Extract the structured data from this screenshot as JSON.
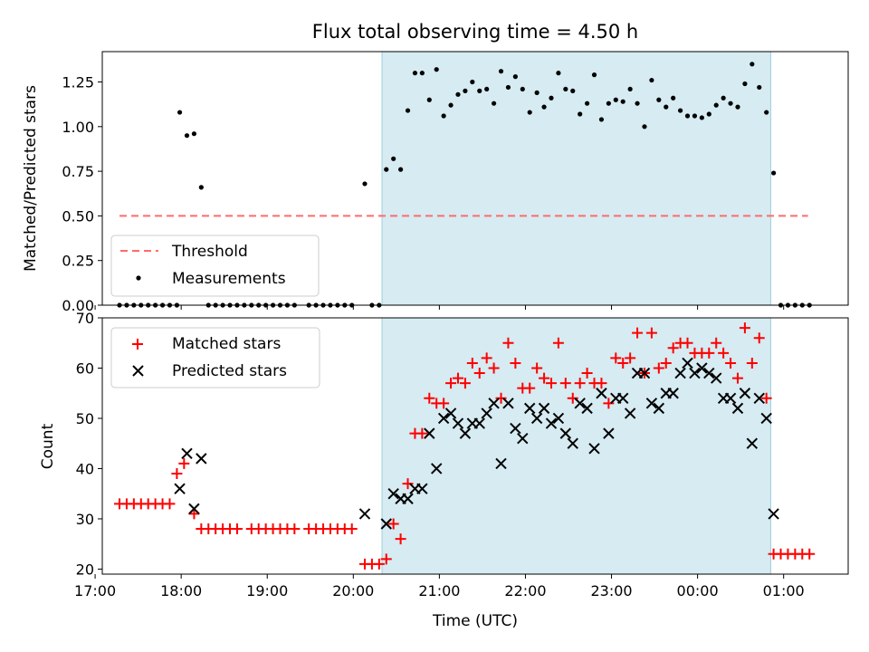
{
  "chart_data": [
    {
      "type": "scatter",
      "title": "Flux total observing time = 4.50 h",
      "ylabel": "Matched/Predicted stars",
      "xlabel": "",
      "xlim": [
        "17:05",
        "01:45"
      ],
      "ylim": [
        0,
        1.42
      ],
      "yticks": [
        "0.00",
        "0.25",
        "0.50",
        "0.75",
        "1.00",
        "1.25"
      ],
      "shaded_interval": [
        "20:20",
        "00:51"
      ],
      "shade_color": "#add8e6",
      "legend_position": "lower-left",
      "threshold": {
        "name": "Threshold",
        "value": 0.5,
        "x_start": "17:17",
        "x_end": "01:17",
        "color": "#ff6b6b",
        "style": "dashed"
      },
      "series": [
        {
          "name": "Measurements",
          "color": "#000000",
          "marker": "dot",
          "points": [
            [
              "17:17",
              0
            ],
            [
              "17:22",
              0
            ],
            [
              "17:27",
              0
            ],
            [
              "17:32",
              0
            ],
            [
              "17:37",
              0
            ],
            [
              "17:42",
              0
            ],
            [
              "17:47",
              0
            ],
            [
              "17:52",
              0
            ],
            [
              "17:57",
              0
            ],
            [
              "17:59",
              1.08
            ],
            [
              "18:04",
              0.95
            ],
            [
              "18:09",
              0.96
            ],
            [
              "18:14",
              0.66
            ],
            [
              "18:19",
              0
            ],
            [
              "18:24",
              0
            ],
            [
              "18:29",
              0
            ],
            [
              "18:34",
              0
            ],
            [
              "18:39",
              0
            ],
            [
              "18:44",
              0
            ],
            [
              "18:49",
              0
            ],
            [
              "18:54",
              0
            ],
            [
              "18:59",
              0
            ],
            [
              "19:04",
              0
            ],
            [
              "19:09",
              0
            ],
            [
              "19:14",
              0
            ],
            [
              "19:19",
              0
            ],
            [
              "19:29",
              0
            ],
            [
              "19:34",
              0
            ],
            [
              "19:39",
              0
            ],
            [
              "19:44",
              0
            ],
            [
              "19:49",
              0
            ],
            [
              "19:54",
              0
            ],
            [
              "19:59",
              0
            ],
            [
              "20:08",
              0.68
            ],
            [
              "20:13",
              0
            ],
            [
              "20:18",
              0
            ],
            [
              "20:23",
              0.76
            ],
            [
              "20:28",
              0.82
            ],
            [
              "20:33",
              0.76
            ],
            [
              "20:38",
              1.09
            ],
            [
              "20:43",
              1.3
            ],
            [
              "20:48",
              1.3
            ],
            [
              "20:53",
              1.15
            ],
            [
              "20:58",
              1.32
            ],
            [
              "21:03",
              1.06
            ],
            [
              "21:08",
              1.12
            ],
            [
              "21:13",
              1.18
            ],
            [
              "21:18",
              1.2
            ],
            [
              "21:23",
              1.25
            ],
            [
              "21:28",
              1.2
            ],
            [
              "21:33",
              1.21
            ],
            [
              "21:38",
              1.13
            ],
            [
              "21:43",
              1.31
            ],
            [
              "21:48",
              1.22
            ],
            [
              "21:53",
              1.28
            ],
            [
              "21:58",
              1.21
            ],
            [
              "22:03",
              1.08
            ],
            [
              "22:08",
              1.19
            ],
            [
              "22:13",
              1.11
            ],
            [
              "22:18",
              1.16
            ],
            [
              "22:23",
              1.3
            ],
            [
              "22:28",
              1.21
            ],
            [
              "22:33",
              1.2
            ],
            [
              "22:38",
              1.07
            ],
            [
              "22:43",
              1.13
            ],
            [
              "22:48",
              1.29
            ],
            [
              "22:53",
              1.04
            ],
            [
              "22:58",
              1.13
            ],
            [
              "23:03",
              1.15
            ],
            [
              "23:08",
              1.14
            ],
            [
              "23:13",
              1.21
            ],
            [
              "23:18",
              1.13
            ],
            [
              "23:23",
              1.0
            ],
            [
              "23:28",
              1.26
            ],
            [
              "23:33",
              1.15
            ],
            [
              "23:38",
              1.11
            ],
            [
              "23:43",
              1.16
            ],
            [
              "23:48",
              1.09
            ],
            [
              "23:53",
              1.06
            ],
            [
              "23:58",
              1.06
            ],
            [
              "00:03",
              1.05
            ],
            [
              "00:08",
              1.07
            ],
            [
              "00:13",
              1.12
            ],
            [
              "00:18",
              1.16
            ],
            [
              "00:23",
              1.13
            ],
            [
              "00:28",
              1.11
            ],
            [
              "00:33",
              1.24
            ],
            [
              "00:38",
              1.35
            ],
            [
              "00:43",
              1.22
            ],
            [
              "00:48",
              1.08
            ],
            [
              "00:53",
              0.74
            ],
            [
              "00:58",
              0
            ],
            [
              "01:03",
              0
            ],
            [
              "01:08",
              0
            ],
            [
              "01:13",
              0
            ],
            [
              "01:18",
              0
            ]
          ]
        }
      ]
    },
    {
      "type": "scatter",
      "title": "",
      "xlabel": "Time (UTC)",
      "ylabel": "Count",
      "xlim": [
        "17:05",
        "01:45"
      ],
      "ylim": [
        19,
        70
      ],
      "xticks": [
        "17:00",
        "18:00",
        "19:00",
        "20:00",
        "21:00",
        "22:00",
        "23:00",
        "00:00",
        "01:00"
      ],
      "yticks": [
        "20",
        "30",
        "40",
        "50",
        "60",
        "70"
      ],
      "shaded_interval": [
        "20:20",
        "00:51"
      ],
      "shade_color": "#add8e6",
      "legend_position": "top-left",
      "series": [
        {
          "name": "Matched stars",
          "color": "#ff0000",
          "marker": "plus",
          "points": [
            [
              "17:17",
              33
            ],
            [
              "17:22",
              33
            ],
            [
              "17:27",
              33
            ],
            [
              "17:32",
              33
            ],
            [
              "17:37",
              33
            ],
            [
              "17:42",
              33
            ],
            [
              "17:47",
              33
            ],
            [
              "17:52",
              33
            ],
            [
              "17:57",
              39
            ],
            [
              "18:02",
              41
            ],
            [
              "18:09",
              31
            ],
            [
              "18:14",
              28
            ],
            [
              "18:19",
              28
            ],
            [
              "18:24",
              28
            ],
            [
              "18:29",
              28
            ],
            [
              "18:34",
              28
            ],
            [
              "18:39",
              28
            ],
            [
              "18:49",
              28
            ],
            [
              "18:54",
              28
            ],
            [
              "18:59",
              28
            ],
            [
              "19:04",
              28
            ],
            [
              "19:09",
              28
            ],
            [
              "19:14",
              28
            ],
            [
              "19:19",
              28
            ],
            [
              "19:29",
              28
            ],
            [
              "19:34",
              28
            ],
            [
              "19:39",
              28
            ],
            [
              "19:44",
              28
            ],
            [
              "19:49",
              28
            ],
            [
              "19:54",
              28
            ],
            [
              "19:59",
              28
            ],
            [
              "20:08",
              21
            ],
            [
              "20:13",
              21
            ],
            [
              "20:18",
              21
            ],
            [
              "20:23",
              22
            ],
            [
              "20:28",
              29
            ],
            [
              "20:33",
              26
            ],
            [
              "20:38",
              37
            ],
            [
              "20:43",
              47
            ],
            [
              "20:48",
              47
            ],
            [
              "20:53",
              54
            ],
            [
              "20:58",
              53
            ],
            [
              "21:03",
              53
            ],
            [
              "21:08",
              57
            ],
            [
              "21:13",
              58
            ],
            [
              "21:18",
              57
            ],
            [
              "21:23",
              61
            ],
            [
              "21:28",
              59
            ],
            [
              "21:33",
              62
            ],
            [
              "21:38",
              60
            ],
            [
              "21:43",
              54
            ],
            [
              "21:48",
              65
            ],
            [
              "21:53",
              61
            ],
            [
              "21:58",
              56
            ],
            [
              "22:03",
              56
            ],
            [
              "22:08",
              60
            ],
            [
              "22:13",
              58
            ],
            [
              "22:18",
              57
            ],
            [
              "22:23",
              65
            ],
            [
              "22:28",
              57
            ],
            [
              "22:33",
              54
            ],
            [
              "22:38",
              57
            ],
            [
              "22:43",
              59
            ],
            [
              "22:48",
              57
            ],
            [
              "22:53",
              57
            ],
            [
              "22:58",
              53
            ],
            [
              "23:03",
              62
            ],
            [
              "23:08",
              61
            ],
            [
              "23:13",
              62
            ],
            [
              "23:18",
              67
            ],
            [
              "23:23",
              59
            ],
            [
              "23:28",
              67
            ],
            [
              "23:33",
              60
            ],
            [
              "23:38",
              61
            ],
            [
              "23:43",
              64
            ],
            [
              "23:48",
              65
            ],
            [
              "23:53",
              65
            ],
            [
              "23:58",
              63
            ],
            [
              "00:03",
              63
            ],
            [
              "00:08",
              63
            ],
            [
              "00:13",
              65
            ],
            [
              "00:18",
              63
            ],
            [
              "00:23",
              61
            ],
            [
              "00:28",
              58
            ],
            [
              "00:33",
              68
            ],
            [
              "00:38",
              61
            ],
            [
              "00:43",
              66
            ],
            [
              "00:48",
              54
            ],
            [
              "00:53",
              23
            ],
            [
              "00:58",
              23
            ],
            [
              "01:03",
              23
            ],
            [
              "01:08",
              23
            ],
            [
              "01:13",
              23
            ],
            [
              "01:18",
              23
            ]
          ]
        },
        {
          "name": "Predicted stars",
          "color": "#000000",
          "marker": "x",
          "points": [
            [
              "17:59",
              36
            ],
            [
              "18:04",
              43
            ],
            [
              "18:09",
              32
            ],
            [
              "18:14",
              42
            ],
            [
              "20:08",
              31
            ],
            [
              "20:23",
              29
            ],
            [
              "20:28",
              35
            ],
            [
              "20:33",
              34
            ],
            [
              "20:38",
              34
            ],
            [
              "20:43",
              36
            ],
            [
              "20:48",
              36
            ],
            [
              "20:53",
              47
            ],
            [
              "20:58",
              40
            ],
            [
              "21:03",
              50
            ],
            [
              "21:08",
              51
            ],
            [
              "21:13",
              49
            ],
            [
              "21:18",
              47
            ],
            [
              "21:23",
              49
            ],
            [
              "21:28",
              49
            ],
            [
              "21:33",
              51
            ],
            [
              "21:38",
              53
            ],
            [
              "21:43",
              41
            ],
            [
              "21:48",
              53
            ],
            [
              "21:53",
              48
            ],
            [
              "21:58",
              46
            ],
            [
              "22:03",
              52
            ],
            [
              "22:08",
              50
            ],
            [
              "22:13",
              52
            ],
            [
              "22:18",
              49
            ],
            [
              "22:23",
              50
            ],
            [
              "22:28",
              47
            ],
            [
              "22:33",
              45
            ],
            [
              "22:38",
              53
            ],
            [
              "22:43",
              52
            ],
            [
              "22:48",
              44
            ],
            [
              "22:53",
              55
            ],
            [
              "22:58",
              47
            ],
            [
              "23:03",
              54
            ],
            [
              "23:08",
              54
            ],
            [
              "23:13",
              51
            ],
            [
              "23:18",
              59
            ],
            [
              "23:23",
              59
            ],
            [
              "23:28",
              53
            ],
            [
              "23:33",
              52
            ],
            [
              "23:38",
              55
            ],
            [
              "23:43",
              55
            ],
            [
              "23:48",
              59
            ],
            [
              "23:53",
              61
            ],
            [
              "23:58",
              59
            ],
            [
              "00:03",
              60
            ],
            [
              "00:08",
              59
            ],
            [
              "00:13",
              58
            ],
            [
              "00:18",
              54
            ],
            [
              "00:23",
              54
            ],
            [
              "00:28",
              52
            ],
            [
              "00:33",
              55
            ],
            [
              "00:38",
              45
            ],
            [
              "00:43",
              54
            ],
            [
              "00:48",
              50
            ],
            [
              "00:53",
              31
            ]
          ]
        }
      ]
    }
  ]
}
